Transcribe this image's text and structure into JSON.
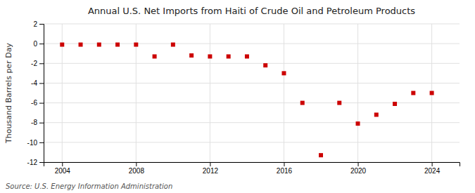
{
  "chart_data": {
    "type": "scatter",
    "title": "Annual U.S. Net Imports from Haiti of Crude Oil and Petroleum Products",
    "y_label": "Thousand Barrels per Day",
    "annotations": [
      "Source: U.S. Energy Information Administration"
    ],
    "x": [
      2004,
      2005,
      2006,
      2007,
      2008,
      2009,
      2010,
      2011,
      2012,
      2013,
      2014,
      2015,
      2016,
      2017,
      2018,
      2019,
      2020,
      2021,
      2022,
      2023,
      2024
    ],
    "values": [
      -0.1,
      -0.1,
      -0.1,
      -0.1,
      -0.1,
      -1.3,
      -0.1,
      -1.2,
      -1.3,
      -1.3,
      -1.3,
      -2.2,
      -3.0,
      -6.0,
      -11.3,
      -6.0,
      -8.1,
      -7.2,
      -6.1,
      -5.0,
      -5.0
    ],
    "color": "#cc0000",
    "marker": "square",
    "xlim": [
      2003.0,
      2025.5
    ],
    "ylim": [
      -12,
      2
    ],
    "xticks": [
      2004,
      2008,
      2012,
      2016,
      2020,
      2024
    ],
    "yticks": [
      2,
      0,
      -2,
      -4,
      -6,
      -8,
      -10,
      -12
    ],
    "grid": true
  }
}
